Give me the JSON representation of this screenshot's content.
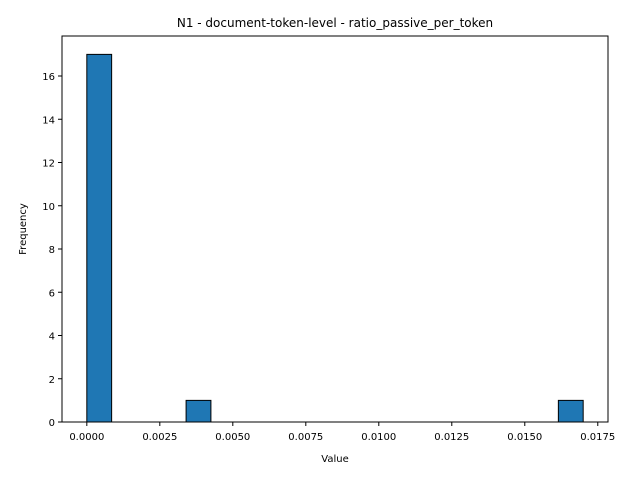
{
  "chart_data": {
    "type": "bar",
    "title": "N1 - document-token-level - ratio_passive_per_token",
    "xlabel": "Value",
    "ylabel": "Frequency",
    "bar_color": "#1f77b4",
    "edge_color": "#000000",
    "grid": false,
    "xlim": [
      -0.00085,
      0.01785
    ],
    "ylim": [
      0,
      17.85
    ],
    "xticks": [
      0.0,
      0.0025,
      0.005,
      0.0075,
      0.01,
      0.0125,
      0.015,
      0.0175
    ],
    "xtick_labels": [
      "0.0000",
      "0.0025",
      "0.0050",
      "0.0075",
      "0.0100",
      "0.0125",
      "0.0150",
      "0.0175"
    ],
    "yticks": [
      0,
      2,
      4,
      6,
      8,
      10,
      12,
      14,
      16
    ],
    "ytick_labels": [
      "0",
      "2",
      "4",
      "6",
      "8",
      "10",
      "12",
      "14",
      "16"
    ],
    "bins": [
      {
        "x0": 0.0,
        "x1": 0.00085,
        "count": 17
      },
      {
        "x0": 0.0034,
        "x1": 0.00425,
        "count": 1
      },
      {
        "x0": 0.01615,
        "x1": 0.017,
        "count": 1
      }
    ]
  }
}
